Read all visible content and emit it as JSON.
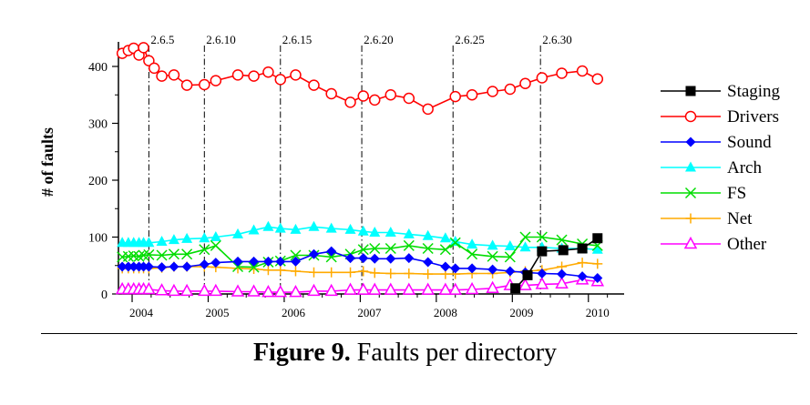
{
  "figure": {
    "number": "Figure 9.",
    "caption": "Faults per directory"
  },
  "chart_data": {
    "type": "line",
    "title": "",
    "xlabel": "",
    "ylabel": "# of faults",
    "xlim": [
      2003.7,
      2010.35
    ],
    "ylim": [
      0,
      440
    ],
    "yticks": [
      0,
      100,
      200,
      300,
      400
    ],
    "xticks": [
      {
        "value": 2004,
        "label": "2004"
      },
      {
        "value": 2005,
        "label": "2005"
      },
      {
        "value": 2006,
        "label": "2006"
      },
      {
        "value": 2007,
        "label": "2007"
      },
      {
        "value": 2008,
        "label": "2008"
      },
      {
        "value": 2009,
        "label": "2009"
      },
      {
        "value": 2010,
        "label": "2010"
      }
    ],
    "releases": [
      {
        "x": 2004.1,
        "label": "2.6.5"
      },
      {
        "x": 2004.83,
        "label": "2.6.10"
      },
      {
        "x": 2005.83,
        "label": "2.6.15"
      },
      {
        "x": 2006.9,
        "label": "2.6.20"
      },
      {
        "x": 2008.1,
        "label": "2.6.25"
      },
      {
        "x": 2009.25,
        "label": "2.6.30"
      }
    ],
    "legend_position": "right",
    "series": [
      {
        "name": "Staging",
        "color": "#000000",
        "marker": "square-filled",
        "x": [
          2008.92,
          2009.08,
          2009.27,
          2009.55,
          2009.8,
          2010.0
        ],
        "y": [
          10,
          33,
          75,
          77,
          80,
          98
        ]
      },
      {
        "name": "Drivers",
        "color": "#ff0000",
        "marker": "circle-open",
        "x": [
          2003.75,
          2003.83,
          2003.9,
          2003.97,
          2004.03,
          2004.1,
          2004.17,
          2004.27,
          2004.43,
          2004.6,
          2004.83,
          2004.98,
          2005.27,
          2005.48,
          2005.67,
          2005.83,
          2006.03,
          2006.27,
          2006.5,
          2006.75,
          2006.92,
          2007.07,
          2007.28,
          2007.52,
          2007.77,
          2008.13,
          2008.35,
          2008.62,
          2008.85,
          2009.05,
          2009.27,
          2009.53,
          2009.8,
          2010.0
        ],
        "y": [
          423,
          428,
          432,
          420,
          433,
          410,
          397,
          383,
          385,
          367,
          368,
          375,
          385,
          383,
          390,
          377,
          385,
          367,
          352,
          337,
          348,
          341,
          350,
          344,
          325,
          347,
          350,
          356,
          360,
          370,
          380,
          388,
          392,
          378
        ]
      },
      {
        "name": "Sound",
        "color": "#0000ff",
        "marker": "diamond-filled",
        "x": [
          2003.75,
          2003.83,
          2003.9,
          2003.97,
          2004.03,
          2004.1,
          2004.27,
          2004.43,
          2004.6,
          2004.83,
          2004.98,
          2005.27,
          2005.48,
          2005.67,
          2005.83,
          2006.03,
          2006.27,
          2006.5,
          2006.75,
          2006.92,
          2007.07,
          2007.28,
          2007.52,
          2007.77,
          2008.0,
          2008.13,
          2008.35,
          2008.62,
          2008.85,
          2009.05,
          2009.27,
          2009.53,
          2009.8,
          2010.0
        ],
        "y": [
          48,
          48,
          48,
          48,
          48,
          48,
          47,
          48,
          48,
          52,
          55,
          57,
          57,
          57,
          57,
          57,
          70,
          75,
          63,
          63,
          62,
          62,
          63,
          56,
          48,
          45,
          45,
          43,
          40,
          38,
          36,
          35,
          31,
          28
        ]
      },
      {
        "name": "Arch",
        "color": "#00ffff",
        "marker": "triangle-filled",
        "x": [
          2003.75,
          2003.83,
          2003.9,
          2003.97,
          2004.03,
          2004.1,
          2004.27,
          2004.43,
          2004.6,
          2004.83,
          2004.98,
          2005.27,
          2005.48,
          2005.67,
          2005.83,
          2006.03,
          2006.27,
          2006.5,
          2006.75,
          2006.92,
          2007.07,
          2007.28,
          2007.52,
          2007.77,
          2008.0,
          2008.13,
          2008.35,
          2008.62,
          2008.85,
          2009.05,
          2009.27,
          2009.53,
          2009.8,
          2010.0
        ],
        "y": [
          90,
          90,
          90,
          90,
          90,
          90,
          92,
          95,
          97,
          98,
          100,
          105,
          112,
          118,
          115,
          113,
          118,
          115,
          113,
          110,
          108,
          108,
          105,
          102,
          98,
          92,
          87,
          85,
          84,
          82,
          82,
          80,
          80,
          78
        ]
      },
      {
        "name": "FS",
        "color": "#00dd00",
        "marker": "x",
        "x": [
          2003.75,
          2003.83,
          2003.9,
          2003.97,
          2004.03,
          2004.1,
          2004.27,
          2004.43,
          2004.6,
          2004.83,
          2004.98,
          2005.27,
          2005.48,
          2005.67,
          2005.83,
          2006.03,
          2006.27,
          2006.5,
          2006.75,
          2006.92,
          2007.07,
          2007.28,
          2007.52,
          2007.77,
          2008.0,
          2008.13,
          2008.35,
          2008.62,
          2008.85,
          2009.05,
          2009.27,
          2009.53,
          2009.8,
          2010.0
        ],
        "y": [
          65,
          66,
          67,
          66,
          68,
          69,
          68,
          70,
          70,
          78,
          85,
          48,
          47,
          56,
          58,
          68,
          68,
          65,
          70,
          78,
          80,
          80,
          85,
          80,
          78,
          90,
          70,
          66,
          65,
          100,
          100,
          95,
          88,
          85
        ]
      },
      {
        "name": "Net",
        "color": "#ffaa00",
        "marker": "plus",
        "x": [
          2003.75,
          2003.83,
          2003.9,
          2003.97,
          2004.03,
          2004.1,
          2004.27,
          2004.43,
          2004.6,
          2004.83,
          2004.98,
          2005.27,
          2005.48,
          2005.67,
          2005.83,
          2006.03,
          2006.27,
          2006.5,
          2006.75,
          2006.92,
          2007.07,
          2007.28,
          2007.52,
          2007.77,
          2008.0,
          2008.13,
          2008.35,
          2008.62,
          2008.85,
          2009.05,
          2009.27,
          2009.53,
          2009.8,
          2010.0
        ],
        "y": [
          45,
          45,
          45,
          45,
          45,
          45,
          46,
          48,
          48,
          48,
          47,
          45,
          44,
          42,
          42,
          40,
          38,
          38,
          38,
          40,
          37,
          36,
          36,
          35,
          35,
          35,
          36,
          36,
          38,
          40,
          42,
          48,
          55,
          53
        ]
      },
      {
        "name": "Other",
        "color": "#ff00ff",
        "marker": "triangle-open",
        "x": [
          2003.75,
          2003.83,
          2003.9,
          2003.97,
          2004.03,
          2004.1,
          2004.27,
          2004.43,
          2004.6,
          2004.83,
          2004.98,
          2005.27,
          2005.48,
          2005.67,
          2005.83,
          2006.03,
          2006.27,
          2006.5,
          2006.75,
          2006.92,
          2007.07,
          2007.28,
          2007.52,
          2007.77,
          2008.0,
          2008.13,
          2008.35,
          2008.62,
          2008.85,
          2009.05,
          2009.27,
          2009.53,
          2009.8,
          2010.0
        ],
        "y": [
          8,
          8,
          8,
          8,
          8,
          8,
          6,
          5,
          5,
          5,
          5,
          4,
          4,
          3,
          3,
          3,
          5,
          5,
          7,
          7,
          7,
          7,
          7,
          7,
          7,
          7,
          8,
          10,
          15,
          15,
          17,
          18,
          25,
          22
        ]
      }
    ]
  }
}
